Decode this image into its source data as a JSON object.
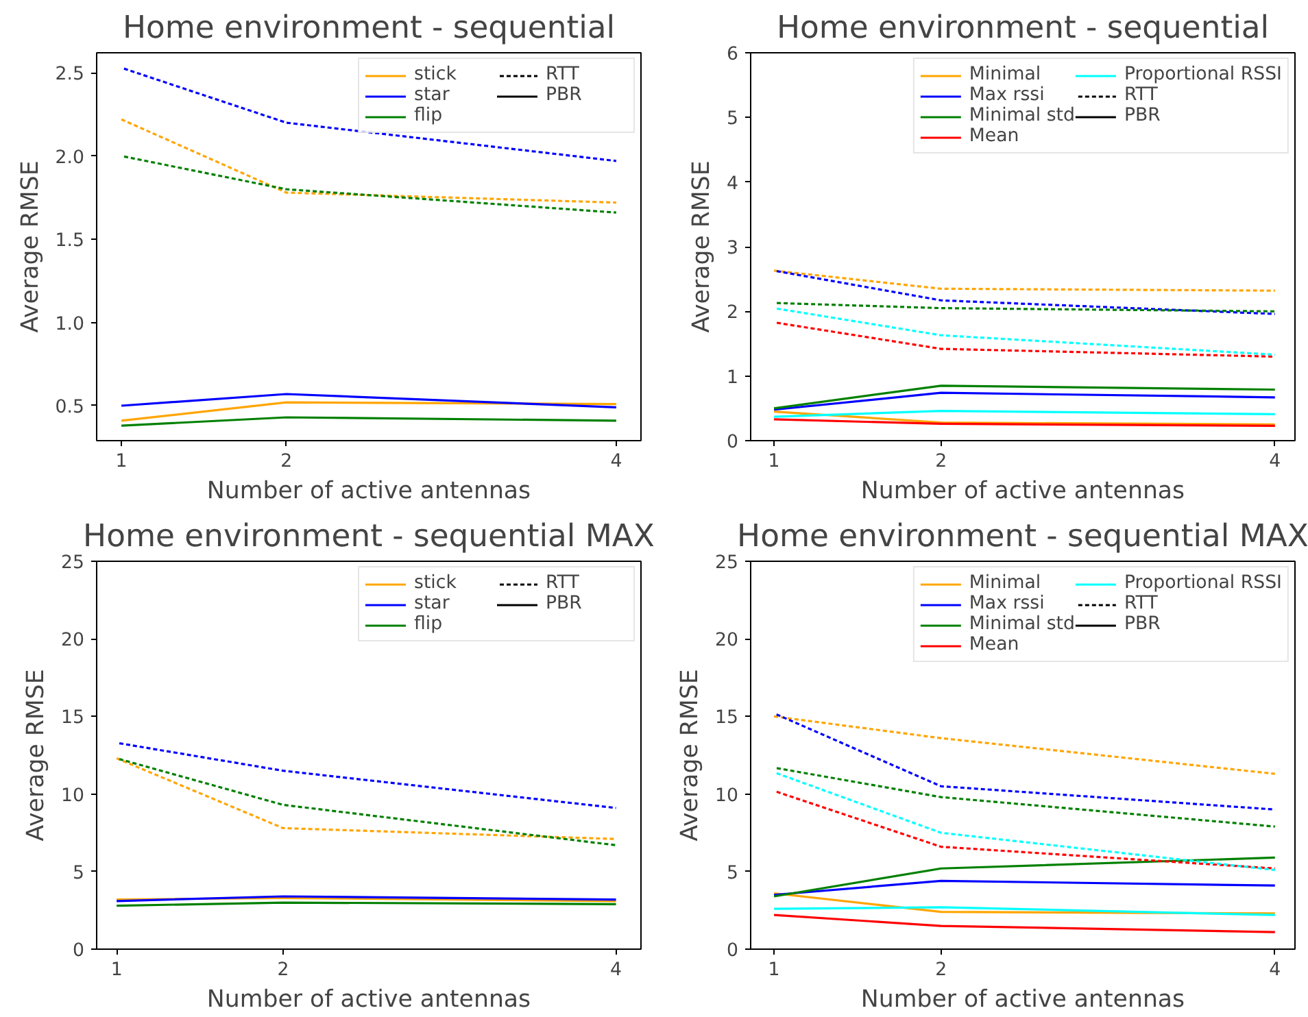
{
  "chart_data": [
    {
      "type": "line",
      "title": "Home environment - sequential",
      "xlabel": "Number of active antennas",
      "ylabel": "Average RMSE",
      "x": [
        1,
        2,
        4
      ],
      "xlim": [
        0.85,
        4.15
      ],
      "xticks": [
        1,
        2,
        4
      ],
      "ylim": [
        0.29,
        2.62
      ],
      "yticks": [
        0.5,
        {
          "value": 1.0,
          "label": "1.0"
        },
        1.5,
        {
          "value": 2.0,
          "label": "2.0"
        },
        2.5
      ],
      "grid": false,
      "legend": "top right",
      "marker": "none",
      "series": [
        {
          "name": "stick",
          "color": "#ffa500",
          "line_style": "solid",
          "values": [
            0.41,
            0.52,
            0.51
          ]
        },
        {
          "name": "star",
          "color": "#0000ff",
          "line_style": "solid",
          "values": [
            0.5,
            0.57,
            0.49
          ]
        },
        {
          "name": "flip",
          "color": "#008000",
          "line_style": "solid",
          "values": [
            0.38,
            0.43,
            0.41
          ]
        },
        {
          "color": "#ffa500",
          "line_style": "dashed",
          "values": [
            2.22,
            1.78,
            1.72
          ]
        },
        {
          "color": "#0000ff",
          "line_style": "dashed",
          "values": [
            2.53,
            2.2,
            1.97
          ]
        },
        {
          "color": "#008000",
          "line_style": "dashed",
          "values": [
            2.0,
            1.8,
            1.66
          ]
        },
        {
          "name": "RTT",
          "color": "#000000",
          "line_style": "dashed",
          "values": [
            null,
            null,
            null
          ]
        },
        {
          "name": "PBR",
          "color": "#000000",
          "line_style": "solid",
          "values": [
            null,
            null,
            null
          ]
        }
      ]
    },
    {
      "type": "line",
      "title": "Home environment - sequential",
      "xlabel": "Number of active antennas",
      "ylabel": "Average RMSE",
      "x": [
        1,
        2,
        4
      ],
      "xlim": [
        0.86,
        4.12
      ],
      "xticks": [
        1,
        2,
        4
      ],
      "ylim": [
        0,
        6
      ],
      "yticks": [
        0,
        1,
        2,
        3,
        4,
        5,
        6
      ],
      "grid": false,
      "legend": "top right",
      "marker": "none",
      "series": [
        {
          "name": "Minimal",
          "color": "#ffa500",
          "line_style": "solid",
          "values": [
            0.45,
            0.28,
            0.25
          ]
        },
        {
          "name": "Max rssi",
          "color": "#0000ff",
          "line_style": "solid",
          "values": [
            0.48,
            0.74,
            0.67
          ]
        },
        {
          "name": "Minimal std",
          "color": "#008000",
          "line_style": "solid",
          "values": [
            0.5,
            0.85,
            0.79
          ]
        },
        {
          "name": "Mean",
          "color": "#ff0000",
          "line_style": "solid",
          "values": [
            0.33,
            0.26,
            0.23
          ]
        },
        {
          "name": "Proportional RSSI",
          "color": "#00ffff",
          "line_style": "solid",
          "values": [
            0.37,
            0.46,
            0.41
          ]
        },
        {
          "color": "#ffa500",
          "line_style": "dashed",
          "values": [
            2.63,
            2.35,
            2.32
          ]
        },
        {
          "color": "#0000ff",
          "line_style": "dashed",
          "values": [
            2.63,
            2.17,
            1.96
          ]
        },
        {
          "color": "#008000",
          "line_style": "dashed",
          "values": [
            2.13,
            2.05,
            2.0
          ]
        },
        {
          "color": "#ff0000",
          "line_style": "dashed",
          "values": [
            1.83,
            1.42,
            1.3
          ]
        },
        {
          "color": "#00ffff",
          "line_style": "dashed",
          "values": [
            2.05,
            1.63,
            1.33
          ]
        },
        {
          "name": "RTT",
          "color": "#000000",
          "line_style": "dashed",
          "values": [
            null,
            null,
            null
          ]
        },
        {
          "name": "PBR",
          "color": "#000000",
          "line_style": "solid",
          "values": [
            null,
            null,
            null
          ]
        }
      ]
    },
    {
      "type": "line",
      "title": "Home environment - sequential MAX",
      "xlabel": "Number of active antennas",
      "ylabel": "Average RMSE",
      "x": [
        1,
        2,
        4
      ],
      "xlim": [
        0.88,
        4.15
      ],
      "xticks": [
        1,
        2,
        4
      ],
      "ylim": [
        0,
        25
      ],
      "yticks": [
        0,
        5,
        10,
        15,
        20,
        25
      ],
      "grid": false,
      "legend": "top right",
      "marker": "none",
      "series": [
        {
          "name": "stick",
          "color": "#ffa500",
          "line_style": "solid",
          "values": [
            3.2,
            3.3,
            3.1
          ]
        },
        {
          "name": "star",
          "color": "#0000ff",
          "line_style": "solid",
          "values": [
            3.1,
            3.4,
            3.2
          ]
        },
        {
          "name": "flip",
          "color": "#008000",
          "line_style": "solid",
          "values": [
            2.8,
            3.0,
            2.9
          ]
        },
        {
          "color": "#ffa500",
          "line_style": "dashed",
          "values": [
            12.3,
            7.8,
            7.1
          ]
        },
        {
          "color": "#0000ff",
          "line_style": "dashed",
          "values": [
            13.3,
            11.5,
            9.1
          ]
        },
        {
          "color": "#008000",
          "line_style": "dashed",
          "values": [
            12.3,
            9.3,
            6.7
          ]
        },
        {
          "name": "RTT",
          "color": "#000000",
          "line_style": "dashed",
          "values": [
            null,
            null,
            null
          ]
        },
        {
          "name": "PBR",
          "color": "#000000",
          "line_style": "solid",
          "values": [
            null,
            null,
            null
          ]
        }
      ]
    },
    {
      "type": "line",
      "title": "Home environment - sequential MAX",
      "xlabel": "Number of active antennas",
      "ylabel": "Average RMSE",
      "x": [
        1,
        2,
        4
      ],
      "xlim": [
        0.86,
        4.12
      ],
      "xticks": [
        1,
        2,
        4
      ],
      "ylim": [
        0,
        25
      ],
      "yticks": [
        0,
        5,
        10,
        15,
        20,
        25
      ],
      "grid": false,
      "legend": "top right",
      "marker": "none",
      "series": [
        {
          "name": "Minimal",
          "color": "#ffa500",
          "line_style": "solid",
          "values": [
            3.6,
            2.4,
            2.3
          ]
        },
        {
          "name": "Max rssi",
          "color": "#0000ff",
          "line_style": "solid",
          "values": [
            3.5,
            4.4,
            4.1
          ]
        },
        {
          "name": "Minimal std",
          "color": "#008000",
          "line_style": "solid",
          "values": [
            3.4,
            5.2,
            5.9
          ]
        },
        {
          "name": "Mean",
          "color": "#ff0000",
          "line_style": "solid",
          "values": [
            2.2,
            1.5,
            1.1
          ]
        },
        {
          "name": "Proportional RSSI",
          "color": "#00ffff",
          "line_style": "solid",
          "values": [
            2.6,
            2.7,
            2.2
          ]
        },
        {
          "color": "#ffa500",
          "line_style": "dashed",
          "values": [
            15.0,
            13.6,
            11.3
          ]
        },
        {
          "color": "#0000ff",
          "line_style": "dashed",
          "values": [
            15.2,
            10.5,
            9.0
          ]
        },
        {
          "color": "#008000",
          "line_style": "dashed",
          "values": [
            11.7,
            9.8,
            7.9
          ]
        },
        {
          "color": "#ff0000",
          "line_style": "dashed",
          "values": [
            10.2,
            6.6,
            5.2
          ]
        },
        {
          "color": "#00ffff",
          "line_style": "dashed",
          "values": [
            11.4,
            7.5,
            5.1
          ]
        },
        {
          "name": "RTT",
          "color": "#000000",
          "line_style": "dashed",
          "values": [
            null,
            null,
            null
          ]
        },
        {
          "name": "PBR",
          "color": "#000000",
          "line_style": "solid",
          "values": [
            null,
            null,
            null
          ]
        }
      ]
    }
  ]
}
